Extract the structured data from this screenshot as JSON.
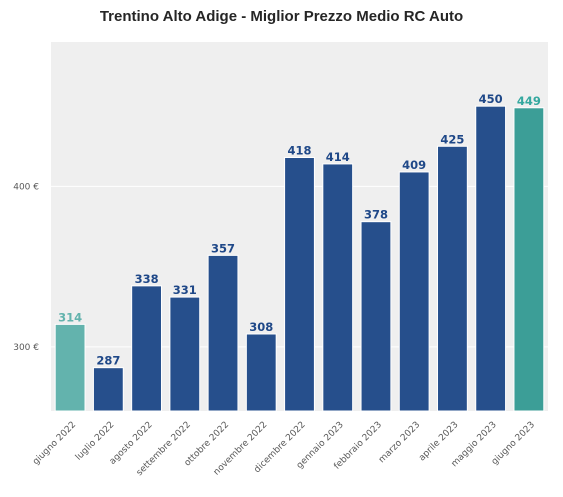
{
  "chart_data": {
    "type": "bar",
    "title": "Trentino Alto Adige - Miglior Prezzo Medio RC Auto",
    "xlabel": "",
    "ylabel": "",
    "categories": [
      "giugno 2022",
      "luglio 2022",
      "agosto 2022",
      "settembre 2022",
      "ottobre 2022",
      "novembre 2022",
      "dicembre 2022",
      "gennaio 2023",
      "febbraio 2023",
      "marzo 2023",
      "aprile 2023",
      "maggio 2023",
      "giugno 2023"
    ],
    "values": [
      314,
      287,
      338,
      331,
      357,
      308,
      418,
      414,
      378,
      409,
      425,
      450,
      449
    ],
    "value_labels": [
      "314",
      "287",
      "338",
      "331",
      "357",
      "308",
      "418",
      "414",
      "378",
      "409",
      "425",
      "450",
      "449"
    ],
    "bar_colors": [
      "#63b3ad",
      "#264f8c",
      "#264f8c",
      "#264f8c",
      "#264f8c",
      "#264f8c",
      "#264f8c",
      "#264f8c",
      "#264f8c",
      "#264f8c",
      "#264f8c",
      "#264f8c",
      "#3c9e97"
    ],
    "label_colors": [
      "#63b3ad",
      "#1f4888",
      "#1f4888",
      "#1f4888",
      "#1f4888",
      "#1f4888",
      "#1f4888",
      "#1f4888",
      "#1f4888",
      "#1f4888",
      "#1f4888",
      "#1f4888",
      "#34a89f"
    ],
    "yticks": [
      300,
      400
    ],
    "ytick_labels": [
      "300 €",
      "400 €"
    ],
    "ylim": [
      260,
      490
    ],
    "grid": true,
    "background": "#efefef"
  }
}
